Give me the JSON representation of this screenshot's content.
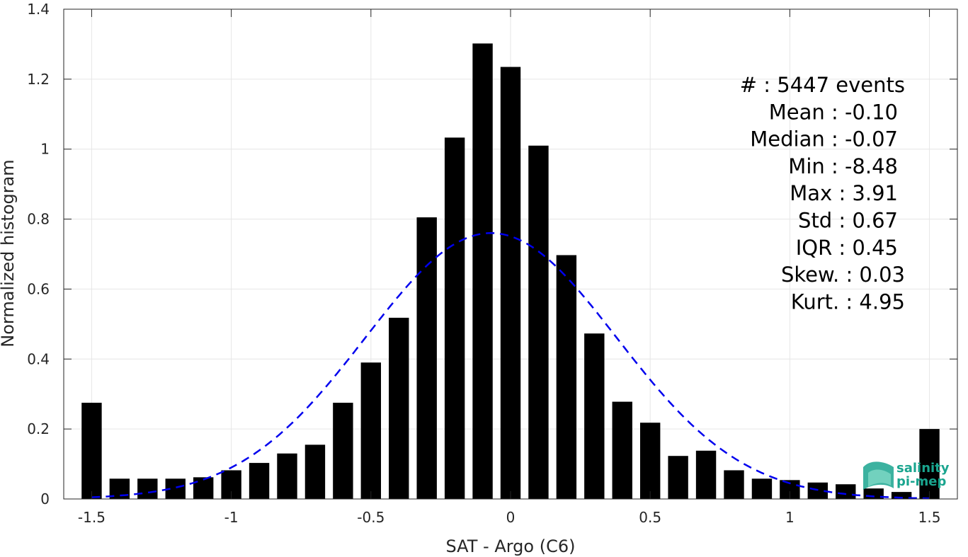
{
  "chart_data": {
    "type": "bar",
    "xlabel": "SAT - Argo (C6)",
    "ylabel": "Normalized histogram",
    "xlim": [
      -1.6,
      1.6
    ],
    "ylim": [
      0,
      1.4
    ],
    "xticks": [
      -1.5,
      -1,
      -0.5,
      0,
      0.5,
      1,
      1.5
    ],
    "xtick_labels": [
      "-1.5",
      "-1",
      "-0.5",
      "0",
      "0.5",
      "1",
      "1.5"
    ],
    "yticks": [
      0,
      0.2,
      0.4,
      0.6,
      0.8,
      1,
      1.2,
      1.4
    ],
    "ytick_labels": [
      "0",
      "0.2",
      "0.4",
      "0.6",
      "0.8",
      "1",
      "1.2",
      "1.4"
    ],
    "grid": true,
    "bar_color": "#000000",
    "bin_centers": [
      -1.5,
      -1.4,
      -1.3,
      -1.2,
      -1.1,
      -1.0,
      -0.9,
      -0.8,
      -0.7,
      -0.6,
      -0.5,
      -0.4,
      -0.3,
      -0.2,
      -0.1,
      0.0,
      0.1,
      0.2,
      0.3,
      0.4,
      0.5,
      0.6,
      0.7,
      0.8,
      0.9,
      1.0,
      1.1,
      1.2,
      1.3,
      1.4,
      1.5
    ],
    "values": [
      0.275,
      0.058,
      0.058,
      0.058,
      0.062,
      0.082,
      0.103,
      0.13,
      0.155,
      0.275,
      0.39,
      0.518,
      0.805,
      1.033,
      1.302,
      1.235,
      1.01,
      0.697,
      0.473,
      0.278,
      0.218,
      0.123,
      0.138,
      0.082,
      0.058,
      0.054,
      0.047,
      0.042,
      0.03,
      0.02,
      0.2
    ],
    "fit_curve": {
      "type": "gaussian",
      "color": "#0000ee",
      "style": "dashed",
      "mean": -0.07,
      "peak": 0.76,
      "sigma": 0.45,
      "x_range": [
        -1.5,
        1.5
      ]
    },
    "stats": [
      {
        "label": "#  :",
        "value": "5447 events"
      },
      {
        "label": "Mean :",
        "value": "-0.10"
      },
      {
        "label": "Median :",
        "value": "-0.07"
      },
      {
        "label": "Min :",
        "value": "-8.48"
      },
      {
        "label": "Max :",
        "value": "3.91"
      },
      {
        "label": "Std :",
        "value": "0.67"
      },
      {
        "label": "IQR :",
        "value": "0.45"
      },
      {
        "label": "Skew. :",
        "value": "0.03"
      },
      {
        "label": "Kurt. :",
        "value": "4.95"
      }
    ]
  },
  "logo": {
    "line1": "salinity",
    "line2": "pi-mep",
    "color": "#1aa58f"
  }
}
